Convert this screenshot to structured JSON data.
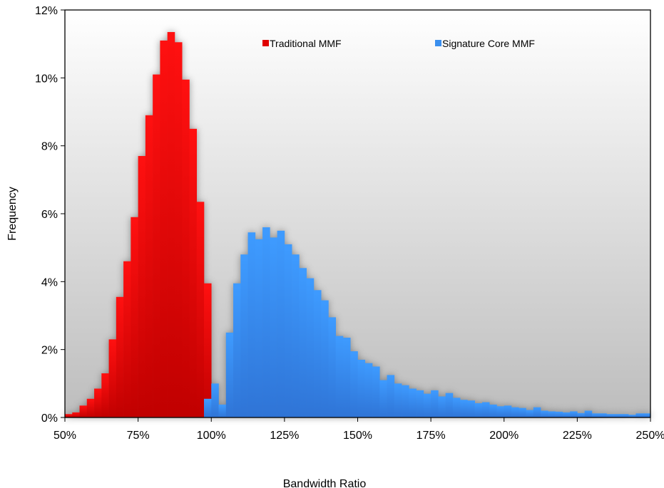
{
  "chart_data": {
    "type": "bar",
    "title": "",
    "xlabel": "Bandwidth Ratio",
    "ylabel": "Frequency",
    "xlim": [
      50,
      250
    ],
    "ylim": [
      0,
      12
    ],
    "bin_width": 2.5,
    "x_ticks": [
      50,
      75,
      100,
      125,
      150,
      175,
      200,
      225,
      250
    ],
    "x_tick_labels": [
      "50%",
      "75%",
      "100%",
      "125%",
      "150%",
      "175%",
      "200%",
      "225%",
      "250%"
    ],
    "y_ticks": [
      0,
      2,
      4,
      6,
      8,
      10,
      12
    ],
    "y_tick_labels": [
      "0%",
      "2%",
      "4%",
      "6%",
      "8%",
      "10%",
      "12%"
    ],
    "legend_position": "top",
    "grid": false,
    "series": [
      {
        "name": "Traditional MMF",
        "color": "#e00000",
        "x": [
          50,
          52.5,
          55,
          57.5,
          60,
          62.5,
          65,
          67.5,
          70,
          72.5,
          75,
          77.5,
          80,
          82.5,
          85,
          87.5,
          90,
          92.5,
          95,
          97.5
        ],
        "values": [
          0.1,
          0.15,
          0.35,
          0.55,
          0.85,
          1.3,
          2.3,
          3.55,
          4.6,
          5.9,
          7.7,
          8.9,
          10.1,
          11.1,
          11.35,
          11.05,
          9.95,
          8.5,
          6.35,
          3.95
        ]
      },
      {
        "name": "Signature Core MMF",
        "color": "#3a8fee",
        "x": [
          97.5,
          100,
          102.5,
          105,
          107.5,
          110,
          112.5,
          115,
          117.5,
          120,
          122.5,
          125,
          127.5,
          130,
          132.5,
          135,
          137.5,
          140,
          142.5,
          145,
          147.5,
          150,
          152.5,
          155,
          157.5,
          160,
          162.5,
          165,
          167.5,
          170,
          172.5,
          175,
          177.5,
          180,
          182.5,
          185,
          187.5,
          190,
          192.5,
          195,
          197.5,
          200,
          202.5,
          205,
          207.5,
          210,
          212.5,
          215,
          217.5,
          220,
          222.5,
          225,
          227.5,
          230,
          232.5,
          235,
          237.5,
          240,
          242.5,
          245,
          247.5
        ],
        "values": [
          0.55,
          1.0,
          0.38,
          2.5,
          3.95,
          4.8,
          5.45,
          5.25,
          5.6,
          5.3,
          5.5,
          5.1,
          4.8,
          4.4,
          4.1,
          3.75,
          3.45,
          2.95,
          2.4,
          2.35,
          1.95,
          1.7,
          1.6,
          1.5,
          1.1,
          1.25,
          1.0,
          0.95,
          0.85,
          0.8,
          0.7,
          0.8,
          0.62,
          0.72,
          0.58,
          0.52,
          0.5,
          0.42,
          0.45,
          0.38,
          0.33,
          0.35,
          0.3,
          0.28,
          0.22,
          0.3,
          0.2,
          0.18,
          0.17,
          0.15,
          0.18,
          0.13,
          0.2,
          0.12,
          0.12,
          0.1,
          0.1,
          0.1,
          0.08,
          0.12,
          0.12
        ]
      }
    ]
  }
}
